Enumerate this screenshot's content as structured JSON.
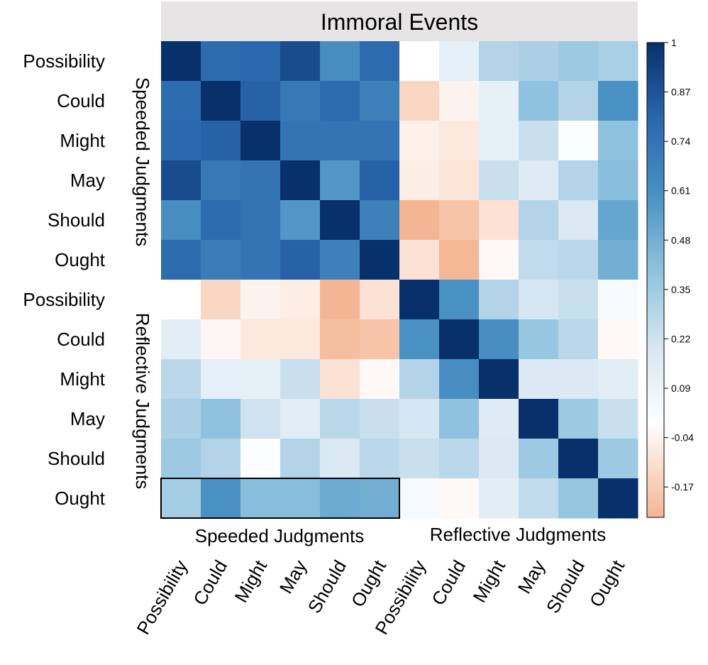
{
  "chart_data": {
    "type": "heatmap",
    "title": "Immoral Events",
    "row_labels": [
      "Possibility",
      "Could",
      "Might",
      "May",
      "Should",
      "Ought",
      "Possibility",
      "Could",
      "Might",
      "May",
      "Should",
      "Ought"
    ],
    "col_labels": [
      "Possibility",
      "Could",
      "Might",
      "May",
      "Should",
      "Ought",
      "Possibility",
      "Could",
      "Might",
      "May",
      "Should",
      "Ought"
    ],
    "row_groups": [
      "Speeded Judgments",
      "Reflective Judgments"
    ],
    "col_groups": [
      "Speeded Judgments",
      "Reflective Judgments"
    ],
    "values": [
      [
        1.0,
        0.78,
        0.8,
        0.9,
        0.62,
        0.78,
        0.0,
        0.13,
        0.3,
        0.32,
        0.36,
        0.33
      ],
      [
        0.78,
        1.0,
        0.82,
        0.72,
        0.78,
        0.68,
        -0.14,
        -0.04,
        0.12,
        0.4,
        0.3,
        0.6
      ],
      [
        0.8,
        0.82,
        1.0,
        0.74,
        0.74,
        0.74,
        -0.05,
        -0.08,
        0.12,
        0.24,
        0.02,
        0.4
      ],
      [
        0.9,
        0.72,
        0.74,
        1.0,
        0.58,
        0.82,
        -0.06,
        -0.09,
        0.24,
        0.16,
        0.3,
        0.42
      ],
      [
        0.62,
        0.78,
        0.74,
        0.58,
        1.0,
        0.68,
        -0.26,
        -0.2,
        -0.1,
        0.3,
        0.18,
        0.52
      ],
      [
        0.78,
        0.7,
        0.74,
        0.82,
        0.68,
        1.0,
        -0.1,
        -0.24,
        -0.02,
        0.26,
        0.28,
        0.48
      ],
      [
        0.0,
        -0.14,
        -0.04,
        -0.06,
        -0.26,
        -0.1,
        1.0,
        0.6,
        0.3,
        0.2,
        0.24,
        0.04
      ],
      [
        0.14,
        -0.03,
        -0.08,
        -0.08,
        -0.22,
        -0.2,
        0.6,
        1.0,
        0.62,
        0.38,
        0.28,
        -0.02
      ],
      [
        0.28,
        0.13,
        0.12,
        0.24,
        -0.1,
        -0.02,
        0.3,
        0.62,
        1.0,
        0.18,
        0.18,
        0.14
      ],
      [
        0.32,
        0.4,
        0.22,
        0.14,
        0.28,
        0.24,
        0.2,
        0.4,
        0.16,
        1.0,
        0.36,
        0.24
      ],
      [
        0.36,
        0.3,
        0.02,
        0.3,
        0.18,
        0.28,
        0.24,
        0.28,
        0.18,
        0.36,
        1.0,
        0.36
      ],
      [
        0.34,
        0.6,
        0.42,
        0.42,
        0.5,
        0.48,
        0.04,
        -0.02,
        0.14,
        0.26,
        0.38,
        1.0
      ]
    ],
    "highlight": {
      "row": 11,
      "col_start": 0,
      "col_end": 5
    },
    "colorbar": {
      "min": -0.25,
      "max": 1,
      "ticks": [
        1,
        0.87,
        0.74,
        0.61,
        0.48,
        0.35,
        0.22,
        0.09,
        -0.04,
        -0.17
      ],
      "tick_labels": [
        "1",
        "0.87",
        "0.74",
        "0.61",
        "0.48",
        "0.35",
        "0.22",
        "0.09",
        "-0.04",
        "-0.17"
      ],
      "stops": [
        {
          "v": -0.25,
          "c": "#f4b592"
        },
        {
          "v": -0.1,
          "c": "#fbe2d4"
        },
        {
          "v": 0.0,
          "c": "#ffffff"
        },
        {
          "v": 0.2,
          "c": "#d6e6f2"
        },
        {
          "v": 0.4,
          "c": "#8fc2de"
        },
        {
          "v": 0.6,
          "c": "#4a91c3"
        },
        {
          "v": 0.8,
          "c": "#2a67ad"
        },
        {
          "v": 1.0,
          "c": "#08306b"
        }
      ]
    },
    "title_band_color": "#e6e4e5"
  }
}
